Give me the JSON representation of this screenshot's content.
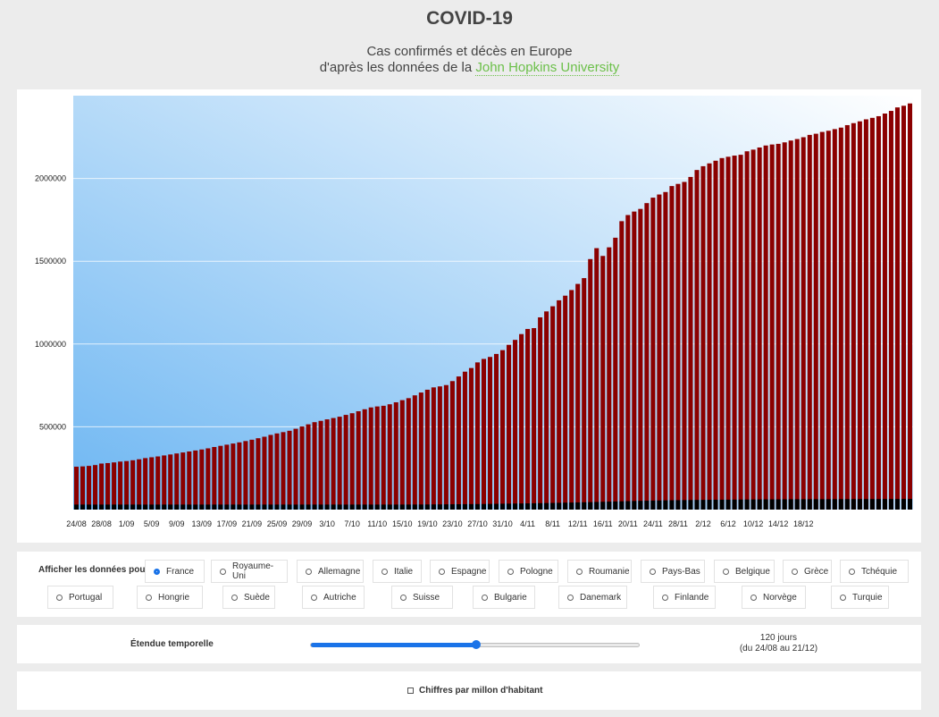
{
  "header": {
    "title": "COVID-19",
    "subtitle_line1": "Cas confirmés et décès en Europe",
    "subtitle_line2_prefix": "d'après les données de la ",
    "source_link": "John Hopkins University"
  },
  "colors": {
    "confirmed": "#8b0000",
    "deaths": "#000000",
    "bg_gradient_start": "#6db6f2",
    "bg_gradient_end": "#ffffff",
    "accent": "#1a73e8",
    "link": "#6cc04a"
  },
  "chart_data": {
    "type": "bar",
    "stacked": false,
    "ylim": [
      0,
      2500000
    ],
    "yticks": [
      500000,
      1000000,
      1500000,
      2000000
    ],
    "ytick_labels": [
      "500000",
      "1000000",
      "1500000",
      "2000000"
    ],
    "xtick_labels": [
      "24/08",
      "28/08",
      "1/09",
      "5/09",
      "9/09",
      "13/09",
      "17/09",
      "21/09",
      "25/09",
      "29/09",
      "3/10",
      "7/10",
      "11/10",
      "15/10",
      "19/10",
      "23/10",
      "27/10",
      "31/10",
      "4/11",
      "8/11",
      "12/11",
      "16/11",
      "20/11",
      "24/11",
      "28/11",
      "2/12",
      "6/12",
      "10/12",
      "14/12",
      "18/12"
    ],
    "grid": true,
    "series": [
      {
        "key": "confirmed",
        "values": [
          259000,
          261000,
          264000,
          269000,
          278000,
          281000,
          285000,
          290000,
          293000,
          298000,
          304000,
          311000,
          316000,
          321000,
          327000,
          333000,
          339000,
          345000,
          351000,
          357000,
          363000,
          370000,
          378000,
          385000,
          392000,
          399000,
          406000,
          414000,
          422000,
          431000,
          440000,
          451000,
          460000,
          468000,
          476000,
          488000,
          502000,
          515000,
          528000,
          536000,
          545000,
          553000,
          561000,
          572000,
          582000,
          594000,
          606000,
          617000,
          623000,
          627000,
          636000,
          648000,
          661000,
          673000,
          690000,
          707000,
          724000,
          738000,
          744000,
          752000,
          776000,
          804000,
          833000,
          855000,
          889000,
          910000,
          922000,
          940000,
          963000,
          995000,
          1025000,
          1060000,
          1091000,
          1096000,
          1161000,
          1197000,
          1228000,
          1264000,
          1292000,
          1326000,
          1363000,
          1398000,
          1513000,
          1579000,
          1532000,
          1584000,
          1642000,
          1742000,
          1779000,
          1800000,
          1816000,
          1851000,
          1884000,
          1903000,
          1918000,
          1954000,
          1967000,
          1979000,
          2009000,
          2051000,
          2074000,
          2091000,
          2107000,
          2123000,
          2131000,
          2138000,
          2143000,
          2164000,
          2174000,
          2187000,
          2199000,
          2205000,
          2209000,
          2218000,
          2229000,
          2238000,
          2249000,
          2263000,
          2270000,
          2281000,
          2288000,
          2298000,
          2307000,
          2322000,
          2334000,
          2345000,
          2357000,
          2366000,
          2376000,
          2392000,
          2408000,
          2429000,
          2439000,
          2453000
        ]
      },
      {
        "key": "deaths",
        "values": [
          30300,
          30300,
          30300,
          30300,
          30300,
          30300,
          30300,
          30300,
          30300,
          30300,
          30300,
          30300,
          30300,
          30300,
          30300,
          30300,
          30300,
          30300,
          30300,
          30300,
          30300,
          30300,
          30300,
          30300,
          30300,
          30300,
          30300,
          30300,
          30300,
          30300,
          30300,
          30300,
          30300,
          30300,
          30300,
          30300,
          30300,
          30300,
          30300,
          30300,
          30300,
          30300,
          30300,
          30300,
          30300,
          30300,
          30300,
          30300,
          30300,
          30300,
          30300,
          30400,
          30400,
          30500,
          30600,
          30800,
          31000,
          31300,
          31500,
          31800,
          32100,
          32400,
          32700,
          33100,
          33500,
          33900,
          34400,
          34900,
          35400,
          35900,
          36500,
          37000,
          37600,
          38300,
          38900,
          39600,
          40300,
          41000,
          41800,
          42600,
          43400,
          44300,
          45200,
          46200,
          47200,
          48200,
          49200,
          50200,
          51200,
          52200,
          53000,
          53800,
          54500,
          55200,
          55900,
          56500,
          57000,
          57500,
          58000,
          58400,
          58800,
          59200,
          59600,
          59900,
          60200,
          60500,
          60800,
          61100,
          61400,
          61700,
          61900,
          62100,
          62300,
          62500,
          62700,
          62800,
          62900,
          63000,
          63100,
          63200,
          63300,
          63400,
          63500,
          63600,
          63700,
          63800,
          63900,
          64000,
          64100,
          64200,
          64300,
          64400,
          64500,
          64600
        ]
      }
    ]
  },
  "selector": {
    "label": "Afficher les données pour",
    "selected": "France",
    "row1": [
      "France",
      "Royaume-Uni",
      "Allemagne",
      "Italie",
      "Espagne",
      "Pologne",
      "Roumanie",
      "Pays-Bas",
      "Belgique",
      "Grèce",
      "Tchéquie"
    ],
    "row2": [
      "Portugal",
      "Hongrie",
      "Suède",
      "Autriche",
      "Suisse",
      "Bulgarie",
      "Danemark",
      "Finlande",
      "Norvège",
      "Turquie"
    ]
  },
  "range": {
    "label": "Étendue temporelle",
    "value_fraction": 0.5,
    "line1": "120 jours",
    "line2": "(du 24/08 au 21/12)"
  },
  "per_million": {
    "label": "Chiffres par millon d'habitant",
    "checked": false
  }
}
